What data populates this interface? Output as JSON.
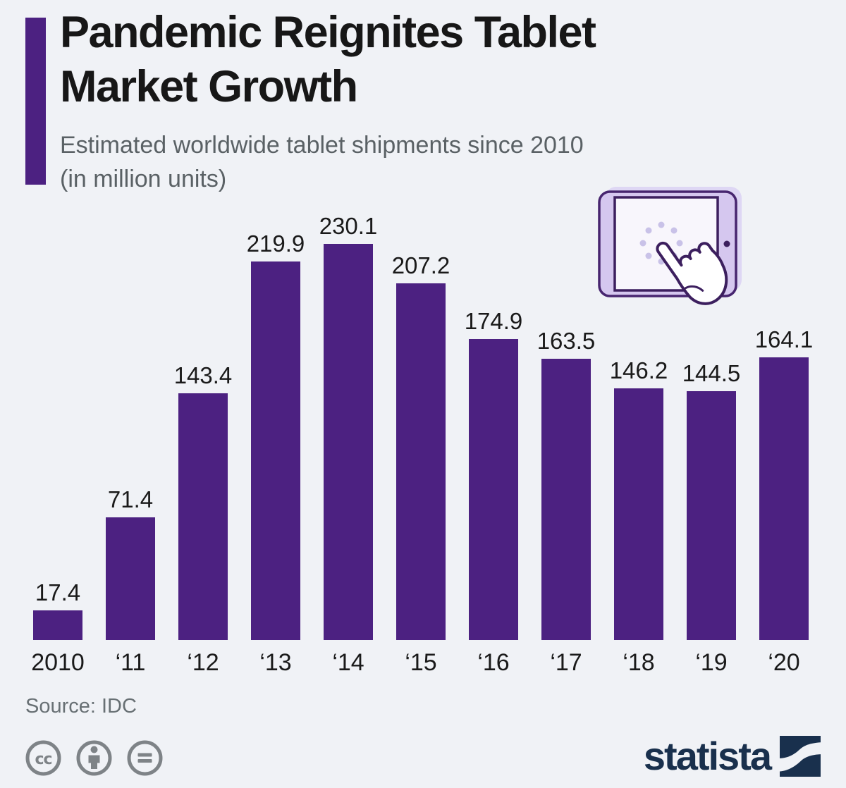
{
  "header": {
    "title_line1": "Pandemic Reignites Tablet",
    "title_line2": "Market Growth",
    "subtitle_line1": "Estimated worldwide tablet shipments since 2010",
    "subtitle_line2": "(in million units)"
  },
  "chart_data": {
    "type": "bar",
    "title": "Pandemic Reignites Tablet Market Growth",
    "subtitle": "Estimated worldwide tablet shipments since 2010 (in million units)",
    "categories": [
      "2010",
      "‘11",
      "‘12",
      "‘13",
      "‘14",
      "‘15",
      "‘16",
      "‘17",
      "‘18",
      "‘19",
      "‘20"
    ],
    "values": [
      17.4,
      71.4,
      143.4,
      219.9,
      230.1,
      207.2,
      174.9,
      163.5,
      146.2,
      144.5,
      164.1
    ],
    "unit": "million units",
    "ylim": [
      0,
      240
    ],
    "grid": false,
    "legend": "none",
    "value_labels": true,
    "bar_color": "#4c2181"
  },
  "footer": {
    "source": "Source: IDC",
    "brand": "statista"
  },
  "icons": {
    "tablet_touch": "tablet with pointing hand",
    "license": [
      "cc-icon",
      "attribution-person-icon",
      "equals-no-derivatives-icon"
    ],
    "statista_mark": "navy square with white s-curve"
  },
  "colors": {
    "background": "#f0f2f6",
    "bar_purple": "#4c2181",
    "title_text": "#171717",
    "subtitle_text": "#5a6165",
    "source_text": "#687074",
    "license_gray": "#7e8387",
    "brand_navy": "#19304d",
    "icon_outline": "#47256f",
    "icon_fill": "#d5c7ef",
    "icon_shadow": "#ded7f4",
    "icon_dots": "#c9c2e8"
  }
}
